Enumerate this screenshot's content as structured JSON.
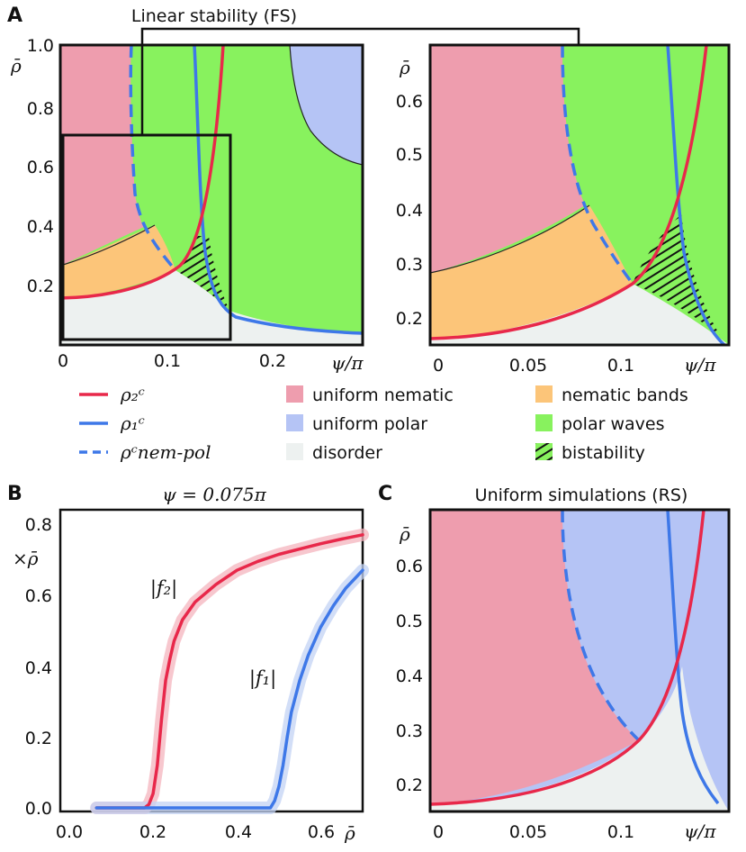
{
  "colors": {
    "nematic": "#EE9DAE",
    "polar": "#B5C4F5",
    "waves": "#88F25E",
    "disorder": "#EDF1F0",
    "bands": "#FCC579",
    "red": "#E8284A",
    "blue": "#3E78E8",
    "lightred": "#F4B4BE",
    "lightblue": "#C3D3F4"
  },
  "chart_data": [
    {
      "panel": "A",
      "type": "area",
      "title": "Linear stability (FS)",
      "xlabel": "ψ/π",
      "ylabel": "ρ̄",
      "xlim": [
        0,
        0.29
      ],
      "ylim": [
        0,
        1.0
      ],
      "xticks": [
        "0",
        "0.1",
        "0.2"
      ],
      "yticks": [
        "0.2",
        "0.4",
        "0.6",
        "0.8",
        "1.0"
      ],
      "inset_box": {
        "xlim": [
          0,
          0.155
        ],
        "ylim": [
          0,
          0.7
        ]
      },
      "regions": [
        "uniform nematic",
        "uniform polar",
        "polar waves",
        "nematic bands",
        "disorder",
        "bistability"
      ]
    },
    {
      "panel": "A-zoom",
      "type": "area",
      "xlabel": "ψ/π",
      "ylabel": "ρ̄",
      "xlim": [
        0,
        0.155
      ],
      "ylim": [
        0.15,
        0.7
      ],
      "xticks": [
        "0",
        "0.05",
        "0.1"
      ],
      "yticks": [
        "0.2",
        "0.3",
        "0.4",
        "0.5",
        "0.6"
      ]
    },
    {
      "panel": "B",
      "type": "line",
      "title": "ψ = 0.075π",
      "xlabel": "ρ̄",
      "ylabel": "×ρ̄",
      "xlim": [
        0,
        0.7
      ],
      "ylim": [
        0,
        0.83
      ],
      "xticks": [
        "0.0",
        "0.2",
        "0.4",
        "0.6"
      ],
      "yticks": [
        "0.0",
        "0.2",
        "0.4",
        "0.6",
        "0.8"
      ],
      "series": [
        {
          "name": "|f₂|",
          "color": "red",
          "x": [
            0.065,
            0.18,
            0.19,
            0.2,
            0.21,
            0.22,
            0.23,
            0.24,
            0.25,
            0.27,
            0.3,
            0.35,
            0.4,
            0.45,
            0.5,
            0.55,
            0.6,
            0.65,
            0.7
          ],
          "y": [
            0,
            0,
            0.01,
            0.04,
            0.12,
            0.25,
            0.36,
            0.42,
            0.47,
            0.53,
            0.58,
            0.63,
            0.67,
            0.695,
            0.715,
            0.73,
            0.745,
            0.758,
            0.77
          ]
        },
        {
          "name": "|f₁|",
          "color": "blue",
          "x": [
            0.065,
            0.48,
            0.49,
            0.5,
            0.51,
            0.52,
            0.53,
            0.55,
            0.57,
            0.6,
            0.63,
            0.66,
            0.7
          ],
          "y": [
            0,
            0,
            0.02,
            0.06,
            0.12,
            0.2,
            0.27,
            0.36,
            0.43,
            0.51,
            0.57,
            0.62,
            0.67
          ]
        }
      ]
    },
    {
      "panel": "C",
      "type": "area",
      "title": "Uniform simulations (RS)",
      "xlabel": "ψ/π",
      "ylabel": "ρ̄",
      "xlim": [
        0,
        0.155
      ],
      "ylim": [
        0.15,
        0.7
      ],
      "xticks": [
        "0",
        "0.05",
        "0.1"
      ],
      "yticks": [
        "0.2",
        "0.3",
        "0.4",
        "0.5",
        "0.6"
      ]
    }
  ],
  "panel_labels": {
    "a": "A",
    "b": "B",
    "c": "C"
  },
  "legend": {
    "rho2": "ρ₂ᶜ",
    "rho1": "ρ₁ᶜ",
    "rhonp": "ρᶜnem-pol",
    "nematic": "uniform nematic",
    "polar": "uniform polar",
    "disorder": "disorder",
    "bands": "nematic bands",
    "waves": "polar waves",
    "bistability": "bistability"
  }
}
